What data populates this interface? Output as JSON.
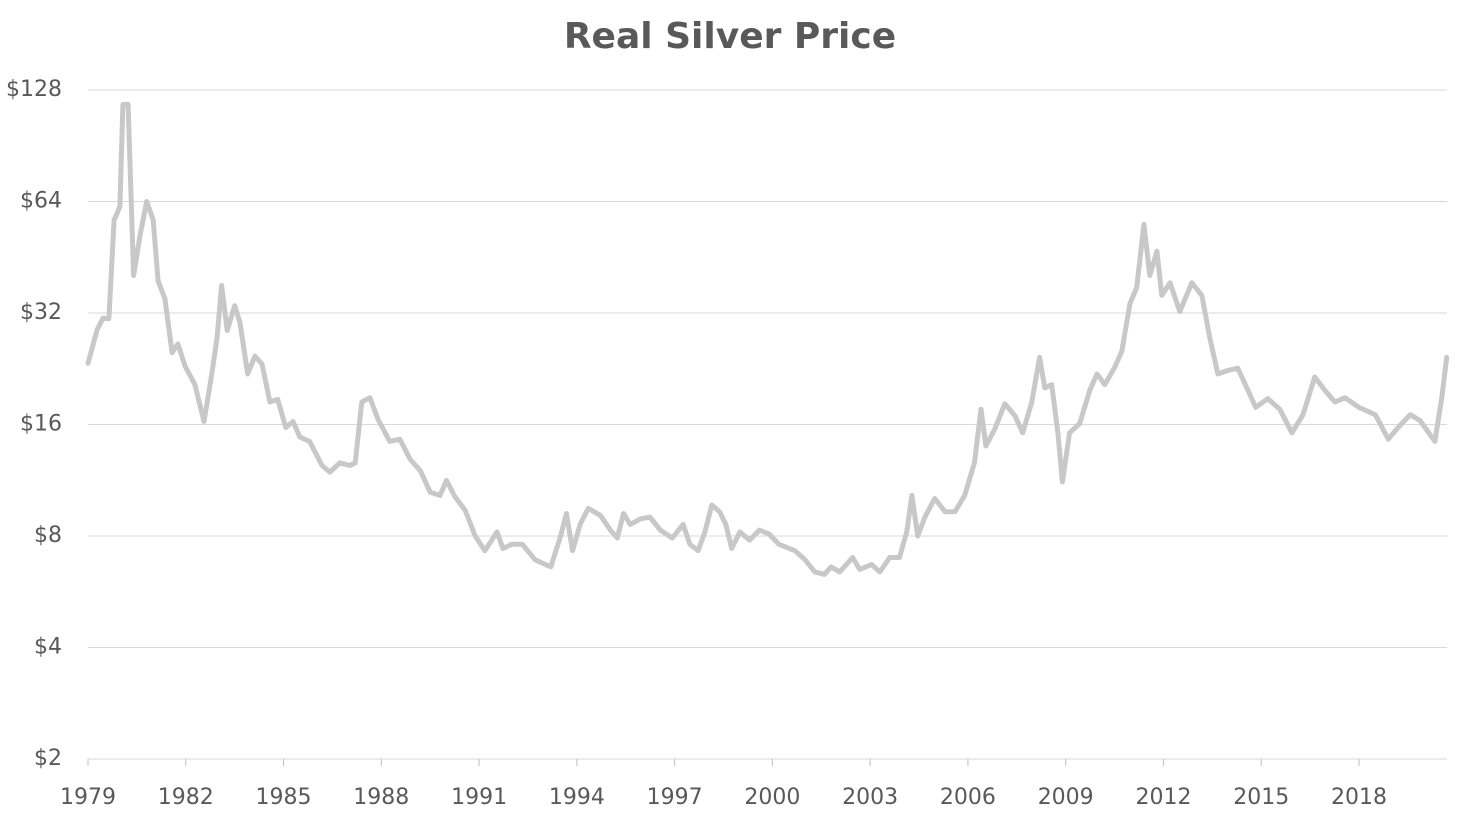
{
  "chart_data": {
    "type": "line",
    "title": "Real Silver Price",
    "x": [
      1979.0,
      1979.28,
      1979.46,
      1979.64,
      1979.8,
      1979.98,
      1980.07,
      1980.23,
      1980.4,
      1980.6,
      1980.8,
      1981.0,
      1981.15,
      1981.36,
      1981.58,
      1981.76,
      1981.98,
      1982.28,
      1982.56,
      1982.8,
      1982.96,
      1983.1,
      1983.27,
      1983.5,
      1983.66,
      1983.9,
      1984.12,
      1984.34,
      1984.58,
      1984.82,
      1985.07,
      1985.29,
      1985.5,
      1985.8,
      1986.18,
      1986.42,
      1986.73,
      1987.04,
      1987.2,
      1987.4,
      1987.65,
      1987.9,
      1988.26,
      1988.57,
      1988.88,
      1989.2,
      1989.5,
      1989.8,
      1990.0,
      1990.26,
      1990.57,
      1990.88,
      1991.18,
      1991.55,
      1991.73,
      1992.0,
      1992.33,
      1992.72,
      1993.2,
      1993.5,
      1993.68,
      1993.87,
      1994.1,
      1994.35,
      1994.72,
      1995.03,
      1995.24,
      1995.43,
      1995.64,
      1995.95,
      1996.24,
      1996.56,
      1996.93,
      1997.26,
      1997.47,
      1997.72,
      1997.93,
      1998.14,
      1998.38,
      1998.57,
      1998.75,
      1999.0,
      1999.3,
      1999.6,
      1999.9,
      2000.2,
      2000.69,
      2001.0,
      2001.3,
      2001.6,
      2001.8,
      2002.07,
      2002.46,
      2002.68,
      2003.04,
      2003.3,
      2003.6,
      2003.9,
      2004.12,
      2004.28,
      2004.46,
      2004.68,
      2004.98,
      2005.3,
      2005.6,
      2005.9,
      2006.2,
      2006.4,
      2006.55,
      2006.83,
      2007.13,
      2007.44,
      2007.68,
      2007.96,
      2008.2,
      2008.36,
      2008.57,
      2008.76,
      2008.9,
      2009.12,
      2009.43,
      2009.74,
      2009.96,
      2010.2,
      2010.5,
      2010.72,
      2010.97,
      2011.18,
      2011.4,
      2011.58,
      2011.8,
      2011.95,
      2012.2,
      2012.5,
      2012.87,
      2013.18,
      2013.42,
      2013.67,
      2013.98,
      2014.28,
      2014.59,
      2014.83,
      2015.2,
      2015.57,
      2015.94,
      2016.28,
      2016.64,
      2016.95,
      2017.26,
      2017.57,
      2018.0,
      2018.5,
      2018.9,
      2019.2,
      2019.57,
      2019.87,
      2020.33,
      2020.54,
      2020.69
    ],
    "series": [
      {
        "color": "#c8c8c8",
        "values": [
          23.4,
          28.8,
          31,
          30.9,
          57,
          62,
          117,
          117,
          40.4,
          52,
          64,
          57,
          39,
          35,
          25,
          26.4,
          23,
          20.5,
          16.3,
          21.9,
          27.5,
          38,
          28.7,
          33.5,
          30.2,
          21.9,
          24.5,
          23.3,
          18.4,
          18.7,
          15.7,
          16.3,
          14.8,
          14.4,
          12.4,
          11.9,
          12.6,
          12.4,
          12.6,
          18.4,
          18.9,
          16.5,
          14.4,
          14.6,
          12.9,
          12.0,
          10.5,
          10.3,
          11.3,
          10.2,
          9.4,
          8.0,
          7.3,
          8.2,
          7.4,
          7.6,
          7.6,
          6.9,
          6.6,
          8.0,
          9.2,
          7.3,
          8.6,
          9.5,
          9.1,
          8.3,
          7.9,
          9.2,
          8.6,
          8.9,
          9.0,
          8.3,
          7.9,
          8.6,
          7.6,
          7.3,
          8.2,
          9.7,
          9.3,
          8.6,
          7.4,
          8.2,
          7.8,
          8.3,
          8.1,
          7.6,
          7.3,
          6.9,
          6.4,
          6.3,
          6.6,
          6.4,
          7.0,
          6.5,
          6.7,
          6.4,
          7.0,
          7.0,
          8.2,
          10.3,
          8.0,
          9.0,
          10.1,
          9.3,
          9.3,
          10.3,
          12.6,
          17.6,
          14.0,
          15.6,
          18.2,
          16.9,
          15.2,
          18.4,
          24.3,
          20.1,
          20.5,
          15.2,
          11.2,
          15.2,
          16.1,
          19.8,
          21.9,
          20.5,
          22.8,
          25.2,
          33.9,
          37.5,
          55.5,
          40.4,
          47,
          35.7,
          38.6,
          32.3,
          38.6,
          35.7,
          27.5,
          21.9,
          22.4,
          22.7,
          19.8,
          17.8,
          18.8,
          17.6,
          15.2,
          17.0,
          21.5,
          19.8,
          18.4,
          18.9,
          17.8,
          17.0,
          14.6,
          15.7,
          17.0,
          16.4,
          14.4,
          18.9,
          24.3
        ]
      }
    ],
    "xlim": [
      1979,
      2020.7
    ],
    "xticks": [
      1979,
      1982,
      1985,
      1988,
      1991,
      1994,
      1997,
      2000,
      2003,
      2006,
      2009,
      2012,
      2015,
      2018
    ],
    "ylim": [
      2,
      128
    ],
    "y_log_base": 2,
    "yticks": [
      {
        "value": 2,
        "label": "$2"
      },
      {
        "value": 4,
        "label": "$4"
      },
      {
        "value": 8,
        "label": "$8"
      },
      {
        "value": 16,
        "label": "$16"
      },
      {
        "value": 32,
        "label": "$32"
      },
      {
        "value": 64,
        "label": "$64"
      },
      {
        "value": 128,
        "label": "$128"
      }
    ],
    "grid": true
  }
}
